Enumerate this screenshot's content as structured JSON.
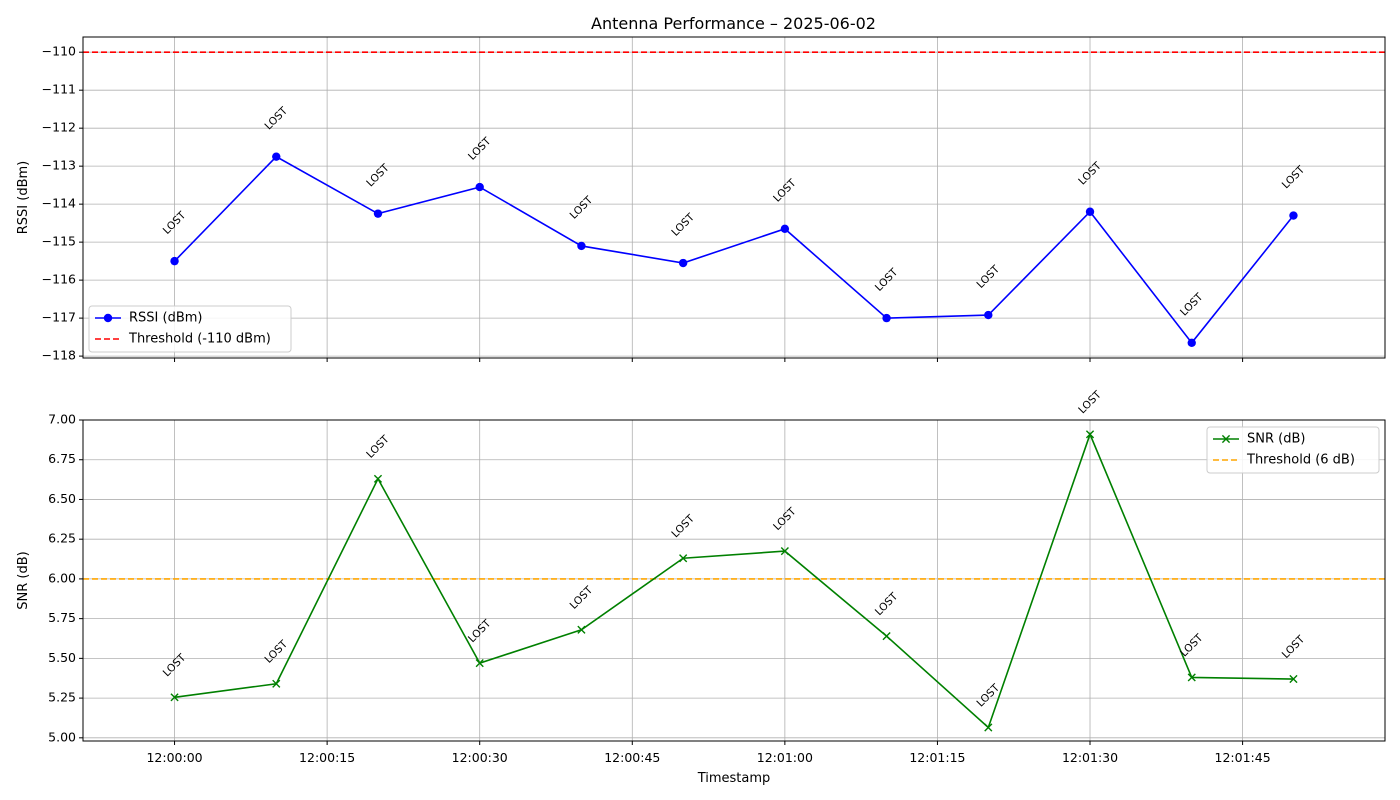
{
  "chart_data": [
    {
      "type": "line",
      "title": "Antenna Performance – 2025-06-02",
      "xlabel": "",
      "ylabel": "RSSI (dBm)",
      "x": [
        "12:00:00",
        "12:00:10",
        "12:00:20",
        "12:00:30",
        "12:00:40",
        "12:00:50",
        "12:01:00",
        "12:01:10",
        "12:01:20",
        "12:01:30",
        "12:01:40",
        "12:01:50"
      ],
      "xticks": [
        "12:00:00",
        "12:00:15",
        "12:00:30",
        "12:00:45",
        "12:01:00",
        "12:01:15",
        "12:01:30",
        "12:01:45"
      ],
      "show_xtick_labels": false,
      "ylim": [
        -118.05,
        -109.6
      ],
      "yticks": [
        -118,
        -117,
        -116,
        -115,
        -114,
        -113,
        -112,
        -111,
        -110
      ],
      "ytick_labels": [
        "−118",
        "−117",
        "−116",
        "−115",
        "−114",
        "−113",
        "−112",
        "−111",
        "−110"
      ],
      "grid": true,
      "legend_position": "lower-left",
      "series": [
        {
          "name": "RSSI (dBm)",
          "color": "#0000ff",
          "marker": "circle",
          "values": [
            -115.5,
            -112.75,
            -114.25,
            -113.55,
            -115.1,
            -115.55,
            -114.65,
            -117.0,
            -116.92,
            -114.2,
            -117.65,
            -114.3
          ]
        }
      ],
      "threshold": {
        "name": "Threshold (-110 dBm)",
        "value": -110,
        "color": "#ff0000"
      },
      "annotation_text": "LOST",
      "annotation_y": [
        -114.5,
        -111.75,
        -113.25,
        -112.55,
        -114.1,
        -114.55,
        -113.65,
        -116.0,
        -115.92,
        -113.2,
        -116.65,
        -113.3
      ]
    },
    {
      "type": "line",
      "title": "",
      "xlabel": "Timestamp",
      "ylabel": "SNR (dB)",
      "x": [
        "12:00:00",
        "12:00:10",
        "12:00:20",
        "12:00:30",
        "12:00:40",
        "12:00:50",
        "12:01:00",
        "12:01:10",
        "12:01:20",
        "12:01:30",
        "12:01:40",
        "12:01:50"
      ],
      "xticks": [
        "12:00:00",
        "12:00:15",
        "12:00:30",
        "12:00:45",
        "12:01:00",
        "12:01:15",
        "12:01:30",
        "12:01:45"
      ],
      "show_xtick_labels": true,
      "ylim": [
        4.98,
        7.0
      ],
      "yticks": [
        5.0,
        5.25,
        5.5,
        5.75,
        6.0,
        6.25,
        6.5,
        6.75,
        7.0
      ],
      "ytick_labels": [
        "5.00",
        "5.25",
        "5.50",
        "5.75",
        "6.00",
        "6.25",
        "6.50",
        "6.75",
        "7.00"
      ],
      "grid": true,
      "legend_position": "upper-right",
      "series": [
        {
          "name": "SNR (dB)",
          "color": "#008000",
          "marker": "x",
          "values": [
            5.255,
            5.34,
            6.63,
            5.47,
            5.68,
            6.13,
            6.175,
            5.64,
            5.065,
            6.91,
            5.38,
            5.37
          ]
        }
      ],
      "threshold": {
        "name": "Threshold (6 dB)",
        "value": 6.0,
        "color": "#ffa500"
      },
      "annotation_text": "LOST",
      "annotation_y": [
        5.455,
        5.54,
        6.83,
        5.67,
        5.88,
        6.33,
        6.375,
        5.84,
        5.265,
        7.11,
        5.58,
        5.57
      ]
    }
  ]
}
